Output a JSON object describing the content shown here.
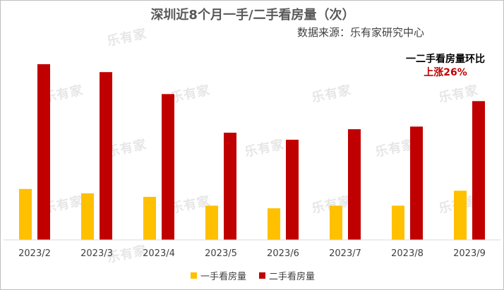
{
  "title": "深圳近8个月一手/二手看房量（次）",
  "source": "数据来源：乐有家研究中心",
  "watermark_text": "乐有家",
  "annotation": {
    "title": "一二手看房量环比",
    "value": "上涨26%"
  },
  "colors": {
    "new_home": "#FFC000",
    "second_hand": "#C00000",
    "axis": "#d9d9d9"
  },
  "chart_data": {
    "type": "bar",
    "categories": [
      "2023/2",
      "2023/3",
      "2023/4",
      "2023/5",
      "2023/6",
      "2023/7",
      "2023/8",
      "2023/9"
    ],
    "series": [
      {
        "name": "一手看房量",
        "values": [
          29,
          26.5,
          24.5,
          19.5,
          18,
          19.5,
          19.5,
          28
        ]
      },
      {
        "name": "二手看房量",
        "values": [
          100,
          95.5,
          83,
          61,
          57,
          63,
          64.5,
          79
        ]
      }
    ],
    "ylim": [
      0,
      100
    ],
    "grid": false,
    "legend": "bottom"
  }
}
